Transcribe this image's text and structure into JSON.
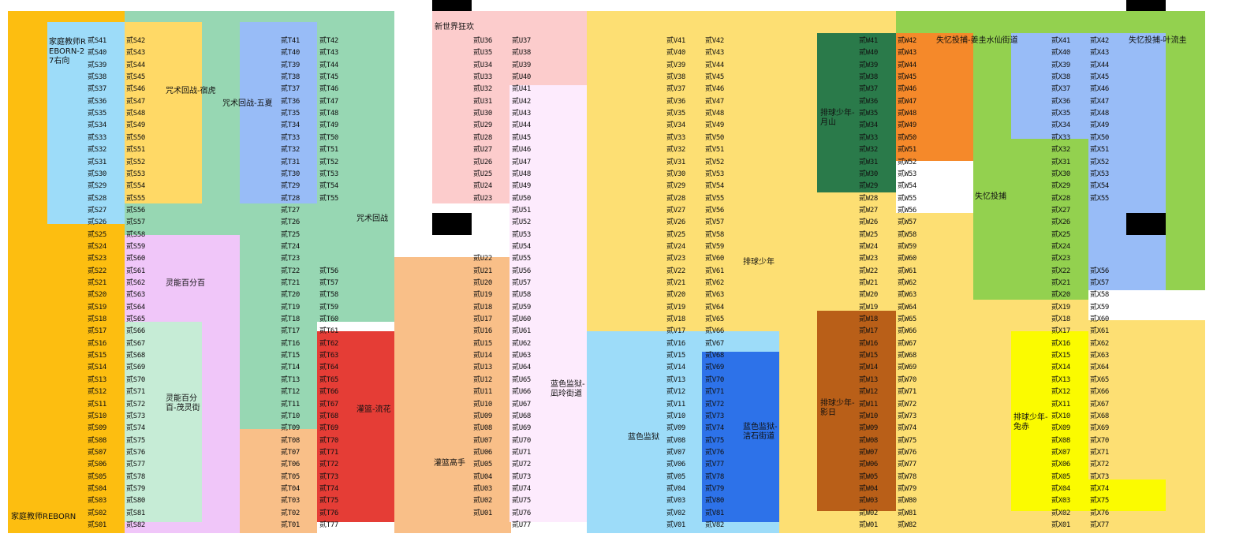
{
  "colors": {
    "reborn": "#fdbe10",
    "jjk_green": "#97d7b3",
    "yellow_light": "#ffd966",
    "sky": "#9ddcf9",
    "periwinkle": "#98bcf7",
    "lilac": "#f0c6f9",
    "mint": "#c6ecd6",
    "peach": "#f9bf88",
    "red": "#e53d36",
    "pink": "#fccccc",
    "lavender": "#fdebfd",
    "haikyu_yellow": "#fddf73",
    "blue_strong": "#2d72e9",
    "dark_green": "#2a7a4a",
    "orange": "#f5892a",
    "brown": "#b95f18",
    "lime": "#93d14f",
    "bright_yellow": "#fbfb00"
  },
  "zones": {
    "reborn_27": "家庭教师REBORN-27右向",
    "reborn": "家庭教师REBORN",
    "jjk_sukuna": "咒术回战-宿虎",
    "jjk_gojo_geto": "咒术回战-五夏",
    "jjk": "咒术回战",
    "mob_psycho": "灵能百分百",
    "mob_psycho_ritsu": "灵能百分百-茂灵街",
    "new_world": "新世界狂欢",
    "slam_dunk_rukawa": "灌篮-流花",
    "slam_dunk": "灌篮高手",
    "blue_lock_rin": "蓝色监狱-凪玲街道",
    "blue_lock": "蓝色监狱",
    "blue_lock_2": "蓝色监狱-洁石街道",
    "haikyu": "排球少年",
    "haikyu_tsukishima": "排球少年-月山",
    "haikyu_kageyama": "排球少年-影日",
    "haikyu_suna": "排球少年-兔赤",
    "nanatsu": "失忆投捕",
    "nanatsu_a": "失忆投捕-姜圭水仙街道",
    "nanatsu_b": "失忆投捕-叶流圭"
  },
  "booths": {
    "S_left": [
      "贰S41",
      "贰S40",
      "贰S39",
      "贰S38",
      "贰S37",
      "贰S36",
      "贰S35",
      "贰S34",
      "贰S33",
      "贰S32",
      "贰S31",
      "贰S30",
      "贰S29",
      "贰S28",
      "贰S27",
      "贰S26",
      "贰S25",
      "贰S24",
      "贰S23",
      "贰S22",
      "贰S21",
      "贰S20",
      "贰S19",
      "贰S18",
      "贰S17",
      "贰S16",
      "贰S15",
      "贰S14",
      "贰S13",
      "贰S12",
      "贰S11",
      "贰S10",
      "贰S09",
      "贰S08",
      "贰S07",
      "贰S06",
      "贰S05",
      "贰S04",
      "贰S03",
      "贰S02",
      "贰S01"
    ],
    "S_right": [
      "贰S42",
      "贰S43",
      "贰S44",
      "贰S45",
      "贰S46",
      "贰S47",
      "贰S48",
      "贰S49",
      "贰S50",
      "贰S51",
      "贰S52",
      "贰S53",
      "贰S54",
      "贰S55",
      "贰S56",
      "贰S57",
      "贰S58",
      "贰S59",
      "贰S60",
      "贰S61",
      "贰S62",
      "贰S63",
      "贰S64",
      "贰S65",
      "贰S66",
      "贰S67",
      "贰S68",
      "贰S69",
      "贰S70",
      "贰S71",
      "贰S72",
      "贰S73",
      "贰S74",
      "贰S75",
      "贰S76",
      "贰S77",
      "贰S78",
      "贰S79",
      "贰S80",
      "贰S81",
      "贰S82"
    ],
    "T_left": [
      "贰T41",
      "贰T40",
      "贰T39",
      "贰T38",
      "贰T37",
      "贰T36",
      "贰T35",
      "贰T34",
      "贰T33",
      "贰T32",
      "贰T31",
      "贰T30",
      "贰T29",
      "贰T28",
      "贰T27",
      "贰T26",
      "贰T25",
      "贰T24",
      "贰T23",
      "贰T22",
      "贰T21",
      "贰T20",
      "贰T19",
      "贰T18",
      "贰T17",
      "贰T16",
      "贰T15",
      "贰T14",
      "贰T13",
      "贰T12",
      "贰T11",
      "贰T10",
      "贰T09",
      "贰T08",
      "贰T07",
      "贰T06",
      "贰T05",
      "贰T04",
      "贰T03",
      "贰T02",
      "贰T01"
    ],
    "T_right": [
      "贰T42",
      "贰T43",
      "贰T44",
      "贰T45",
      "贰T46",
      "贰T47",
      "贰T48",
      "贰T49",
      "贰T50",
      "贰T51",
      "贰T52",
      "贰T53",
      "贰T54",
      "贰T55",
      "",
      "",
      "",
      "",
      "",
      "贰T56",
      "贰T57",
      "贰T58",
      "贰T59",
      "贰T60",
      "贰T61",
      "贰T62",
      "贰T63",
      "贰T64",
      "贰T65",
      "贰T66",
      "贰T67",
      "贰T68",
      "贰T69",
      "贰T70",
      "贰T71",
      "贰T72",
      "贰T73",
      "贰T74",
      "贰T75",
      "贰T76",
      "贰T77"
    ],
    "U_left": [
      "贰U36",
      "贰U35",
      "贰U34",
      "贰U33",
      "贰U32",
      "贰U31",
      "贰U30",
      "贰U29",
      "贰U28",
      "贰U27",
      "贰U26",
      "贰U25",
      "贰U24",
      "贰U23",
      "",
      "",
      "",
      "",
      "贰U22",
      "贰U21",
      "贰U20",
      "贰U19",
      "贰U18",
      "贰U17",
      "贰U16",
      "贰U15",
      "贰U14",
      "贰U13",
      "贰U12",
      "贰U11",
      "贰U10",
      "贰U09",
      "贰U08",
      "贰U07",
      "贰U06",
      "贰U05",
      "贰U04",
      "贰U03",
      "贰U02",
      "贰U01"
    ],
    "U_right": [
      "贰U37",
      "贰U38",
      "贰U39",
      "贰U40",
      "贰U41",
      "贰U42",
      "贰U43",
      "贰U44",
      "贰U45",
      "贰U46",
      "贰U47",
      "贰U48",
      "贰U49",
      "贰U50",
      "贰U51",
      "贰U52",
      "贰U53",
      "贰U54",
      "贰U55",
      "贰U56",
      "贰U57",
      "贰U58",
      "贰U59",
      "贰U60",
      "贰U61",
      "贰U62",
      "贰U63",
      "贰U64",
      "贰U65",
      "贰U66",
      "贰U67",
      "贰U68",
      "贰U69",
      "贰U70",
      "贰U71",
      "贰U72",
      "贰U73",
      "贰U74",
      "贰U75",
      "贰U76",
      "贰U77"
    ],
    "V_left": [
      "贰V41",
      "贰V40",
      "贰V39",
      "贰V38",
      "贰V37",
      "贰V36",
      "贰V35",
      "贰V34",
      "贰V33",
      "贰V32",
      "贰V31",
      "贰V30",
      "贰V29",
      "贰V28",
      "贰V27",
      "贰V26",
      "贰V25",
      "贰V24",
      "贰V23",
      "贰V22",
      "贰V21",
      "贰V20",
      "贰V19",
      "贰V18",
      "贰V17",
      "贰V16",
      "贰V15",
      "贰V14",
      "贰V13",
      "贰V12",
      "贰V11",
      "贰V10",
      "贰V09",
      "贰V08",
      "贰V07",
      "贰V06",
      "贰V05",
      "贰V04",
      "贰V03",
      "贰V02",
      "贰V01"
    ],
    "V_right": [
      "贰V42",
      "贰V43",
      "贰V44",
      "贰V45",
      "贰V46",
      "贰V47",
      "贰V48",
      "贰V49",
      "贰V50",
      "贰V51",
      "贰V52",
      "贰V53",
      "贰V54",
      "贰V55",
      "贰V56",
      "贰V57",
      "贰V58",
      "贰V59",
      "贰V60",
      "贰V61",
      "贰V62",
      "贰V63",
      "贰V64",
      "贰V65",
      "贰V66",
      "贰V67",
      "贰V68",
      "贰V69",
      "贰V70",
      "贰V71",
      "贰V72",
      "贰V73",
      "贰V74",
      "贰V75",
      "贰V76",
      "贰V77",
      "贰V78",
      "贰V79",
      "贰V80",
      "贰V81",
      "贰V82"
    ],
    "W_left": [
      "贰W41",
      "贰W40",
      "贰W39",
      "贰W38",
      "贰W37",
      "贰W36",
      "贰W35",
      "贰W34",
      "贰W33",
      "贰W32",
      "贰W31",
      "贰W30",
      "贰W29",
      "贰W28",
      "贰W27",
      "贰W26",
      "贰W25",
      "贰W24",
      "贰W23",
      "贰W22",
      "贰W21",
      "贰W20",
      "贰W19",
      "贰W18",
      "贰W17",
      "贰W16",
      "贰W15",
      "贰W14",
      "贰W13",
      "贰W12",
      "贰W11",
      "贰W10",
      "贰W09",
      "贰W08",
      "贰W07",
      "贰W06",
      "贰W05",
      "贰W04",
      "贰W03",
      "贰W02",
      "贰W01"
    ],
    "W_right": [
      "贰W42",
      "贰W43",
      "贰W44",
      "贰W45",
      "贰W46",
      "贰W47",
      "贰W48",
      "贰W49",
      "贰W50",
      "贰W51",
      "贰W52",
      "贰W53",
      "贰W54",
      "贰W55",
      "贰W56",
      "贰W57",
      "贰W58",
      "贰W59",
      "贰W60",
      "贰W61",
      "贰W62",
      "贰W63",
      "贰W64",
      "贰W65",
      "贰W66",
      "贰W67",
      "贰W68",
      "贰W69",
      "贰W70",
      "贰W71",
      "贰W72",
      "贰W73",
      "贰W74",
      "贰W75",
      "贰W76",
      "贰W77",
      "贰W78",
      "贰W79",
      "贰W80",
      "贰W81",
      "贰W82"
    ],
    "X_left": [
      "贰X41",
      "贰X40",
      "贰X39",
      "贰X38",
      "贰X37",
      "贰X36",
      "贰X35",
      "贰X34",
      "贰X33",
      "贰X32",
      "贰X31",
      "贰X30",
      "贰X29",
      "贰X28",
      "贰X27",
      "贰X26",
      "贰X25",
      "贰X24",
      "贰X23",
      "贰X22",
      "贰X21",
      "贰X20",
      "贰X19",
      "贰X18",
      "贰X17",
      "贰X16",
      "贰X15",
      "贰X14",
      "贰X13",
      "贰X12",
      "贰X11",
      "贰X10",
      "贰X09",
      "贰X08",
      "贰X07",
      "贰X06",
      "贰X05",
      "贰X04",
      "贰X03",
      "贰X02",
      "贰X01"
    ],
    "X_right": [
      "贰X42",
      "贰X43",
      "贰X44",
      "贰X45",
      "贰X46",
      "贰X47",
      "贰X48",
      "贰X49",
      "贰X50",
      "贰X51",
      "贰X52",
      "贰X53",
      "贰X54",
      "贰X55",
      "",
      "",
      "",
      "",
      "",
      "贰X56",
      "贰X57",
      "贰X58",
      "贰X59",
      "贰X60",
      "贰X61",
      "贰X62",
      "贰X63",
      "贰X64",
      "贰X65",
      "贰X66",
      "贰X67",
      "贰X68",
      "贰X69",
      "贰X70",
      "贰X71",
      "贰X72",
      "贰X73",
      "贰X74",
      "贰X75",
      "贰X76",
      "贰X77"
    ]
  }
}
